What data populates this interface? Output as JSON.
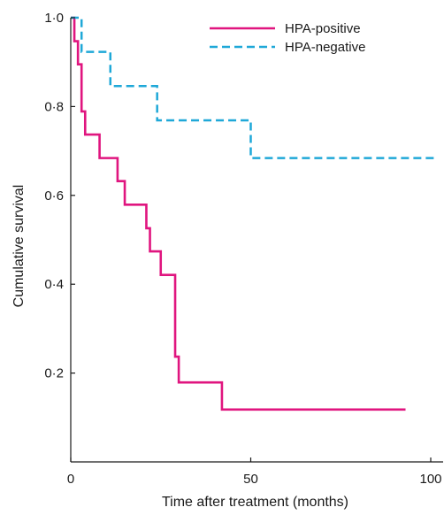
{
  "chart_data": {
    "type": "line",
    "title": "",
    "xlabel": "Time after treatment (months)",
    "ylabel": "Cumulative survival",
    "xlim": [
      0,
      100
    ],
    "ylim": [
      0,
      1.0
    ],
    "x_ticks": [
      "0",
      "50",
      "100"
    ],
    "y_ticks": [
      "0·2",
      "0·4",
      "0·6",
      "0·8",
      "1·0"
    ],
    "grid": false,
    "legend_position": "top-right",
    "step": true,
    "series": [
      {
        "name": "HPA-positive",
        "color": "#e0157f",
        "style": "solid",
        "points": [
          [
            0,
            1.0
          ],
          [
            1,
            0.947
          ],
          [
            2,
            0.895
          ],
          [
            3,
            0.789
          ],
          [
            4,
            0.737
          ],
          [
            8,
            0.684
          ],
          [
            13,
            0.632
          ],
          [
            15,
            0.579
          ],
          [
            21,
            0.526
          ],
          [
            22,
            0.474
          ],
          [
            25,
            0.421
          ],
          [
            29,
            0.237
          ],
          [
            30,
            0.179
          ],
          [
            42,
            0.118
          ],
          [
            93,
            0.118
          ]
        ]
      },
      {
        "name": "HPA-negative",
        "color": "#1fa8d8",
        "style": "dashed",
        "points": [
          [
            0,
            1.0
          ],
          [
            3,
            0.923
          ],
          [
            11,
            0.846
          ],
          [
            24,
            0.769
          ],
          [
            50,
            0.684
          ],
          [
            102,
            0.684
          ]
        ]
      }
    ]
  }
}
